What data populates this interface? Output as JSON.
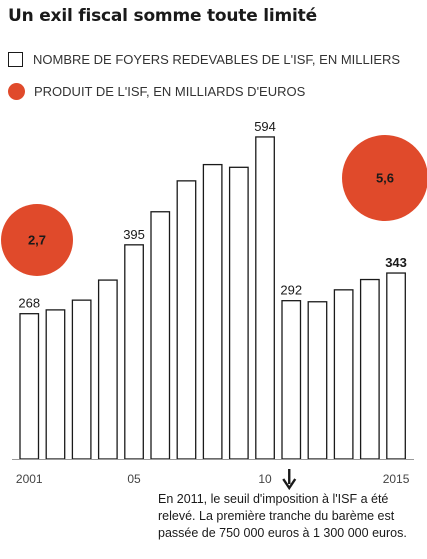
{
  "chart_data": {
    "type": "bar",
    "title": "Un exil fiscal somme toute limité",
    "categories": [
      "2001",
      "2002",
      "2003",
      "2004",
      "2005",
      "2006",
      "2007",
      "2008",
      "2009",
      "2010",
      "2011",
      "2012",
      "2013",
      "2014",
      "2015"
    ],
    "x_tick_labels": [
      {
        "category": "2001",
        "label": "2001"
      },
      {
        "category": "2005",
        "label": "05"
      },
      {
        "category": "2010",
        "label": "10"
      },
      {
        "category": "2015",
        "label": "2015"
      }
    ],
    "series": [
      {
        "name": "NOMBRE DE FOYERS REDEVABLES DE L'ISF, EN MILLIERS",
        "values": [
          268,
          275,
          293,
          330,
          395,
          456,
          513,
          543,
          538,
          594,
          292,
          290,
          312,
          331,
          343
        ],
        "labels": [
          {
            "category": "2001",
            "text": "268"
          },
          {
            "category": "2005",
            "text": "395"
          },
          {
            "category": "2010",
            "text": "594"
          },
          {
            "category": "2011",
            "text": "292"
          },
          {
            "category": "2015",
            "text": "343"
          }
        ]
      },
      {
        "name": "PRODUIT DE L'ISF, EN MILLIARDS D'EUROS",
        "type": "bubble",
        "points": [
          {
            "category": "2001",
            "value": 2.7,
            "label": "2,7"
          },
          {
            "category": "2015",
            "value": 5.6,
            "label": "5,6"
          }
        ]
      }
    ],
    "ylim": [
      0,
      640
    ],
    "grid": false,
    "legend": "top-left",
    "colors": {
      "bars_fill": "#ffffff",
      "bars_stroke": "#1a1a1a",
      "bubble": "#e04a2b"
    },
    "annotation": {
      "category": "2011",
      "symbol": "arrow-down",
      "text": "En 2011, le seuil d'imposition à l'ISF a été relevé. La première tranche du barème est passée de 750 000 euros à 1 300 000 euros."
    }
  }
}
